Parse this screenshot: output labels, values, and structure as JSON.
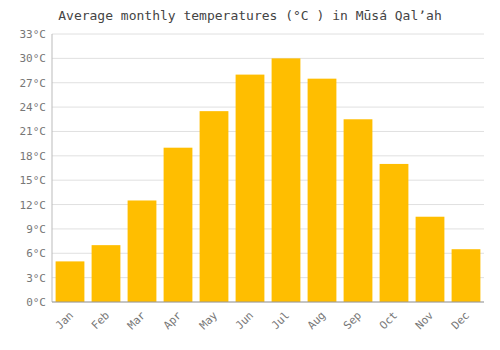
{
  "chart_data": {
    "type": "bar",
    "title": "Average monthly temperatures (°C ) in Mūsá Qalʼah",
    "categories": [
      "Jan",
      "Feb",
      "Mar",
      "Apr",
      "May",
      "Jun",
      "Jul",
      "Aug",
      "Sep",
      "Oct",
      "Nov",
      "Dec"
    ],
    "values": [
      5,
      7,
      12.5,
      19,
      23.5,
      28,
      30,
      27.5,
      22.5,
      17,
      10.5,
      6.5
    ],
    "color": "#FFBE00",
    "ylim": [
      0,
      33
    ],
    "yticks": [
      {
        "value": 0,
        "label": "0°C"
      },
      {
        "value": 3,
        "label": "3°C"
      },
      {
        "value": 6,
        "label": "6°C"
      },
      {
        "value": 9,
        "label": "9°C"
      },
      {
        "value": 12,
        "label": "12°C"
      },
      {
        "value": 15,
        "label": "15°C"
      },
      {
        "value": 18,
        "label": "18°C"
      },
      {
        "value": 21,
        "label": "21°C"
      },
      {
        "value": 24,
        "label": "24°C"
      },
      {
        "value": 27,
        "label": "27°C"
      },
      {
        "value": 30,
        "label": "30°C"
      },
      {
        "value": 33,
        "label": "33°C"
      }
    ],
    "grid": true
  }
}
